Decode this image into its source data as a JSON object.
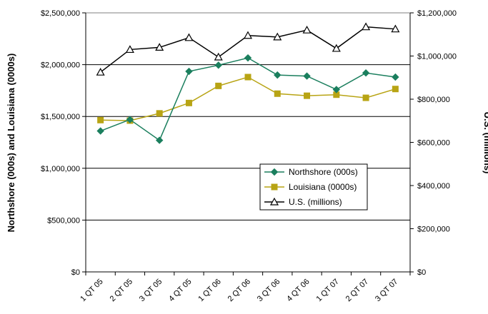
{
  "chart_data": {
    "type": "line",
    "categories": [
      "1 QT 05",
      "2 QT 05",
      "3 QT 05",
      "4 QT 05",
      "1 QT 06",
      "2 QT 06",
      "3 QT 06",
      "4 QT 06",
      "1 QT 07",
      "2 QT 07",
      "3 QT 07"
    ],
    "ylabel": "Northshore (000s) and Louisiana (0000s)",
    "y2label": "U.S. (millions)",
    "ylim": [
      0,
      2500000
    ],
    "y2lim": [
      0,
      1200000
    ],
    "yticks": [
      "$0",
      "$500,000",
      "$1,000,000",
      "$1,500,000",
      "$2,000,000",
      "$2,500,000"
    ],
    "y2ticks": [
      "$0",
      "$200,000",
      "$400,000",
      "$600,000",
      "$800,000",
      "$1,000,000",
      "$1,200,000"
    ],
    "grid": "horizontal",
    "legend_position": "center-right",
    "series": [
      {
        "name": "Northshore (000s)",
        "axis": "left",
        "marker": "diamond",
        "color": "#1b7f5e",
        "values": [
          1360000,
          1470000,
          1270000,
          1935000,
          1995000,
          2065000,
          1900000,
          1890000,
          1760000,
          1920000,
          1880000
        ]
      },
      {
        "name": "Louisiana (0000s)",
        "axis": "left",
        "marker": "square",
        "color": "#b8a414",
        "values": [
          1465000,
          1460000,
          1530000,
          1630000,
          1795000,
          1880000,
          1720000,
          1700000,
          1710000,
          1680000,
          1765000
        ]
      },
      {
        "name": "U.S. (millions)",
        "axis": "right",
        "marker": "triangle",
        "color": "#000000",
        "values": [
          925000,
          1030000,
          1040000,
          1085000,
          995000,
          1095000,
          1088000,
          1120000,
          1035000,
          1135000,
          1125000
        ]
      }
    ]
  }
}
